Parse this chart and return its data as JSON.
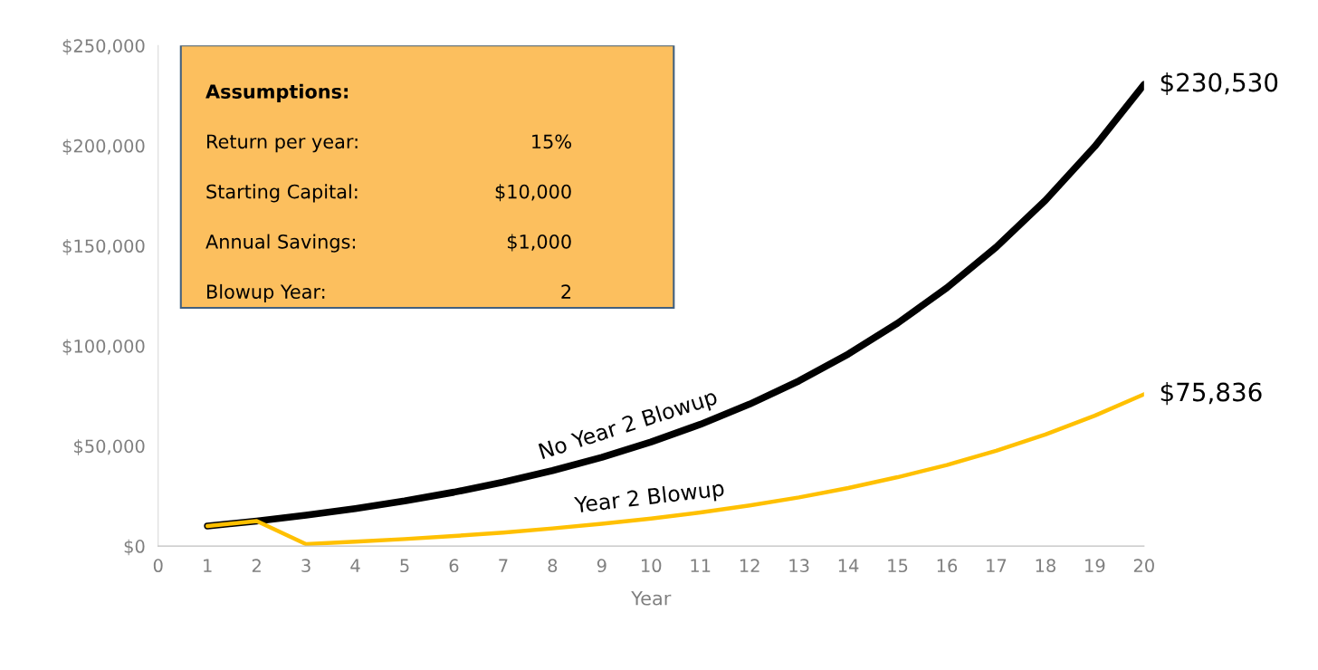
{
  "chart_data": {
    "type": "line",
    "xlabel": "Year",
    "x": [
      1,
      2,
      3,
      4,
      5,
      6,
      7,
      8,
      9,
      10,
      11,
      12,
      13,
      14,
      15,
      16,
      17,
      18,
      19,
      20
    ],
    "series": [
      {
        "name": "No Year 2 Blowup",
        "color": "#000000",
        "values": [
          10000,
          12500,
          15400,
          18700,
          22500,
          26900,
          31900,
          37700,
          44300,
          52000,
          60800,
          70900,
          82500,
          95900,
          111300,
          129000,
          149300,
          172700,
          199600,
          230530
        ],
        "value_labels": [
          null,
          null,
          null,
          null,
          null,
          null,
          null,
          null,
          null,
          null,
          null,
          null,
          null,
          null,
          null,
          null,
          null,
          null,
          null,
          "$230,530"
        ]
      },
      {
        "name": "Year 2 Blowup",
        "color": "#ffc000",
        "values": [
          10000,
          12500,
          1000,
          2200,
          3500,
          5000,
          6700,
          8800,
          11100,
          13700,
          16800,
          20300,
          24300,
          29000,
          34400,
          40500,
          47600,
          55700,
          65100,
          75836
        ],
        "value_labels": [
          null,
          null,
          null,
          null,
          null,
          null,
          null,
          null,
          null,
          null,
          null,
          null,
          null,
          null,
          null,
          null,
          null,
          null,
          null,
          "$75,836"
        ]
      }
    ],
    "xlim": [
      0,
      20
    ],
    "xticks": [
      0,
      1,
      2,
      3,
      4,
      5,
      6,
      7,
      8,
      9,
      10,
      11,
      12,
      13,
      14,
      15,
      16,
      17,
      18,
      19,
      20
    ],
    "ylim": [
      0,
      250000
    ],
    "yticks": [
      {
        "value": 0,
        "label": "$0"
      },
      {
        "value": 50000,
        "label": "$50,000"
      },
      {
        "value": 100000,
        "label": "$100,000"
      },
      {
        "value": 150000,
        "label": "$150,000"
      },
      {
        "value": 200000,
        "label": "$200,000"
      },
      {
        "value": 250000,
        "label": "$250,000"
      }
    ],
    "grid": false,
    "legend": false,
    "annotations": [
      "Assumptions:",
      "Return per year:\t15%",
      "Starting Capital:\t$10,000",
      "Annual Savings:\t$1,000",
      "Blowup Year:\t2"
    ]
  }
}
